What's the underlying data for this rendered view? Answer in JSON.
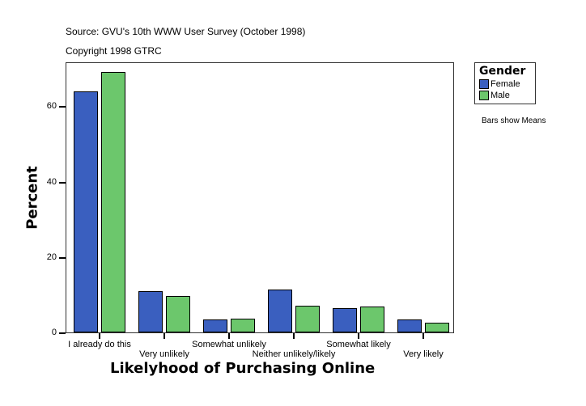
{
  "header": {
    "source": "Source: GVU's 10th WWW User Survey (October 1998)",
    "copyright": "Copyright 1998 GTRC"
  },
  "legend": {
    "title": "Gender",
    "items": [
      {
        "label": "Female",
        "color": "#3a5fbf"
      },
      {
        "label": "Male",
        "color": "#6cc76c"
      }
    ],
    "note": "Bars show Means"
  },
  "chart_data": {
    "type": "bar",
    "title": "",
    "xlabel": "Likelyhood of Purchasing Online",
    "ylabel": "Percent",
    "ylim": [
      0,
      72
    ],
    "yticks": [
      0,
      20,
      40,
      60
    ],
    "categories": [
      "I already do this",
      "Very unlikely",
      "Somewhat unlikely",
      "Neither unlikely/likely",
      "Somewhat likely",
      "Very likely"
    ],
    "series": [
      {
        "name": "Female",
        "color": "#3a5fbf",
        "values": [
          64.0,
          10.9,
          3.4,
          11.4,
          6.4,
          3.4
        ]
      },
      {
        "name": "Male",
        "color": "#6cc76c",
        "values": [
          69.1,
          9.7,
          3.6,
          7.1,
          6.9,
          2.6
        ]
      }
    ],
    "grid": false,
    "legend_position": "right",
    "note": "Bars show Means"
  }
}
